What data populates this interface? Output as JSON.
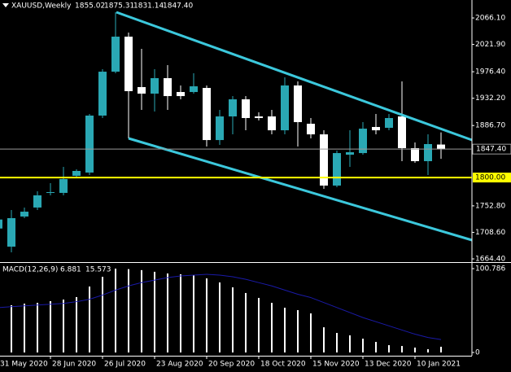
{
  "chart_data": {
    "type": "candlestick",
    "title": "XAUUSD,Weekly",
    "categories": [
      "31 May 2020",
      null,
      null,
      null,
      "28 Jun 2020",
      null,
      null,
      null,
      "26 Jul 2020",
      null,
      null,
      null,
      "23 Aug 2020",
      null,
      null,
      null,
      "20 Sep 2020",
      null,
      null,
      null,
      "18 Oct 2020",
      null,
      null,
      null,
      "15 Nov 2020",
      null,
      null,
      null,
      "13 Dec 2020",
      null,
      null,
      null,
      "10 Jan 2021",
      null,
      null
    ],
    "open": [
      1715,
      1684.8,
      1735.0,
      1750.0,
      1774.4,
      1774.4,
      1802.9,
      1808.3,
      1903.3,
      1976.5,
      2034.9,
      1950.8,
      1939.9,
      1965.7,
      1942.6,
      1942.6,
      1949.4,
      1862.5,
      1901.9,
      1930.4,
      1901.9,
      1901.9,
      1878.8,
      1953.5,
      1889.7,
      1872.0,
      1786.6,
      1838.1,
      1840.8,
      1884.3,
      1882.9,
      1901.9,
      1849.0,
      1827.3,
      1855.02
    ],
    "high": [
      1745,
      1745.8,
      1750.0,
      1777.1,
      1790.7,
      1817.8,
      1813.7,
      1906.0,
      1980.6,
      2075.6,
      2041.7,
      2014.5,
      1980.6,
      1987.4,
      1953.5,
      1973.8,
      1953.5,
      1912.8,
      1935.8,
      1935.8,
      1908.7,
      1912.8,
      1967.0,
      1960.3,
      1899.2,
      1878.8,
      1844.9,
      1878.8,
      1892.4,
      1906.0,
      1906.0,
      1960.3,
      1858.5,
      1872.0,
      1875.31
    ],
    "low": [
      1700,
      1675.3,
      1732.3,
      1745.8,
      1770.3,
      1770.3,
      1800.1,
      1804.2,
      1899.2,
      1973.8,
      1865.3,
      1912.8,
      1910.0,
      1912.8,
      1930.4,
      1939.9,
      1851.7,
      1854.4,
      1872.0,
      1878.8,
      1895.1,
      1872.0,
      1872.0,
      1851.7,
      1865.3,
      1781.1,
      1783.8,
      1817.8,
      1838.1,
      1872.0,
      1878.8,
      1827.3,
      1824.5,
      1804.2,
      1831.14
    ],
    "close": [
      1730,
      1732.3,
      1743.1,
      1770.3,
      1775.7,
      1797.4,
      1811.0,
      1903.3,
      1976.5,
      2034.9,
      1944.0,
      1939.9,
      1965.7,
      1935.8,
      1935.8,
      1952.1,
      1862.5,
      1901.9,
      1930.4,
      1899.2,
      1899.2,
      1878.8,
      1953.5,
      1892.4,
      1872.0,
      1786.6,
      1840.8,
      1842.2,
      1881.5,
      1878.8,
      1899.2,
      1849.0,
      1827.3,
      1855.8,
      1847.4
    ],
    "last_labels": {
      "open": "1855.02",
      "high": "1875.31",
      "low": "1831.14",
      "close": "1847.40"
    },
    "up_color": "#2aa8b4",
    "down_color": "#ffffff",
    "ylim": [
      1659,
      2096
    ],
    "yticks": [
      {
        "value": 2066.1,
        "label": "2066.10"
      },
      {
        "value": 2021.9,
        "label": "2021.90"
      },
      {
        "value": 1976.4,
        "label": "1976.40"
      },
      {
        "value": 1932.2,
        "label": "1932.20"
      },
      {
        "value": 1886.7,
        "label": "1886.70"
      },
      {
        "value": 1752.8,
        "label": "1752.80"
      },
      {
        "value": 1708.6,
        "label": "1708.60"
      },
      {
        "value": 1664.4,
        "label": "1664.40"
      }
    ],
    "hline": {
      "value": 1800,
      "label": "1800.00",
      "color": "#ffff00"
    },
    "macd": {
      "name": "MACD(12,26,9)",
      "values": [
        55,
        56.8,
        58.7,
        59.7,
        61.7,
        63.6,
        66.6,
        79.3,
        91.0,
        100.8,
        100.2,
        99.0,
        97.0,
        95.0,
        94.0,
        93.0,
        89.1,
        84.2,
        78.3,
        71.5,
        65.6,
        59.7,
        53.8,
        50.9,
        47.0,
        30.3,
        23.5,
        20.6,
        16.6,
        12.7,
        8.8,
        7.8,
        5.9,
        3.9,
        6.881
      ],
      "signal": [
        54,
        55,
        56,
        57,
        58,
        59,
        61,
        64,
        69,
        75,
        80,
        84,
        87,
        90,
        92,
        93,
        94,
        93,
        91,
        88,
        84,
        80,
        75,
        70,
        66,
        60,
        54,
        48,
        42,
        37,
        32,
        27,
        22,
        18,
        15.573
      ],
      "bar_color": "#ffffff",
      "signal_color": "#1a1aa8",
      "ylim": [
        -3.9,
        105.7
      ],
      "yticks": [
        100.786,
        0
      ]
    }
  }
}
